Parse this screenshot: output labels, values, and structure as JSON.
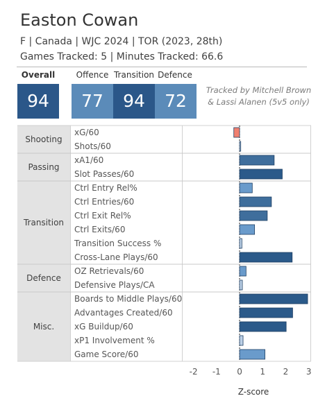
{
  "header": {
    "player_name": "Easton Cowan",
    "info_line_1": "F | Canada | WJC 2024 | TOR (2023, 28th)",
    "info_line_2": "Games Tracked: 5 | Minutes Tracked: 66.6"
  },
  "scores": {
    "overall_label": "Overall",
    "overall_value": "94",
    "offence_label": "Offence",
    "offence_value": "77",
    "transition_label": "Transition",
    "transition_value": "94",
    "defence_label": "Defence",
    "defence_value": "72"
  },
  "credit": {
    "line1": "Tracked by Mitchell Brown",
    "line2": "& Lassi Alanen (5v5 only)"
  },
  "colors": {
    "dark_blue": "#2b5a8a",
    "mid_blue": "#3f6e9c",
    "light_blue": "#6a9bcb",
    "score_overall": "#2b5789",
    "score_offence": "#5b8bb9",
    "score_transition": "#2b5789",
    "score_defence": "#5b8bb9",
    "negative": "#f08070",
    "category_bg": "#e3e3e3"
  },
  "chart_data": {
    "type": "bar",
    "orientation": "horizontal",
    "xlabel": "Z-score",
    "xlim": [
      -2.5,
      3.1
    ],
    "xticks": [
      "-2",
      "-1",
      "0",
      "1",
      "2",
      "3"
    ],
    "xtick_values": [
      -2,
      -1,
      0,
      1,
      2,
      3
    ],
    "groups": [
      {
        "name": "Shooting",
        "metrics": [
          {
            "label": "xG/60",
            "value": -0.25,
            "color": "#f08070"
          },
          {
            "label": "Shots/60",
            "value": 0.05,
            "color": "#bcd0e6"
          }
        ]
      },
      {
        "name": "Passing",
        "metrics": [
          {
            "label": "xA1/60",
            "value": 1.5,
            "color": "#3f6e9c"
          },
          {
            "label": "Slot Passes/60",
            "value": 1.85,
            "color": "#2b5a8a"
          }
        ]
      },
      {
        "name": "Transition",
        "metrics": [
          {
            "label": "Ctrl Entry Rel%",
            "value": 0.55,
            "color": "#6a9bcb"
          },
          {
            "label": "Ctrl Entries/60",
            "value": 1.38,
            "color": "#3f6e9c"
          },
          {
            "label": "Ctrl Exit Rel%",
            "value": 1.2,
            "color": "#3f6e9c"
          },
          {
            "label": "Ctrl Exits/60",
            "value": 0.65,
            "color": "#6a9bcb"
          },
          {
            "label": "Transition Success %",
            "value": 0.1,
            "color": "#bcd0e6"
          },
          {
            "label": "Cross-Lane Plays/60",
            "value": 2.28,
            "color": "#2b5a8a"
          }
        ]
      },
      {
        "name": "Defence",
        "metrics": [
          {
            "label": "OZ Retrievals/60",
            "value": 0.28,
            "color": "#6a9bcb"
          },
          {
            "label": "Defensive Plays/CA",
            "value": 0.12,
            "color": "#bcd0e6"
          }
        ]
      },
      {
        "name": "Misc.",
        "metrics": [
          {
            "label": "Boards to Middle Plays/60",
            "value": 2.95,
            "color": "#2b5a8a"
          },
          {
            "label": "Advantages Created/60",
            "value": 2.3,
            "color": "#2b5a8a"
          },
          {
            "label": "xG Buildup/60",
            "value": 2.02,
            "color": "#2b5a8a"
          },
          {
            "label": "xP1 Involvement %",
            "value": 0.15,
            "color": "#bcd0e6"
          },
          {
            "label": "Game Score/60",
            "value": 1.1,
            "color": "#6a9bcb"
          }
        ]
      }
    ]
  }
}
